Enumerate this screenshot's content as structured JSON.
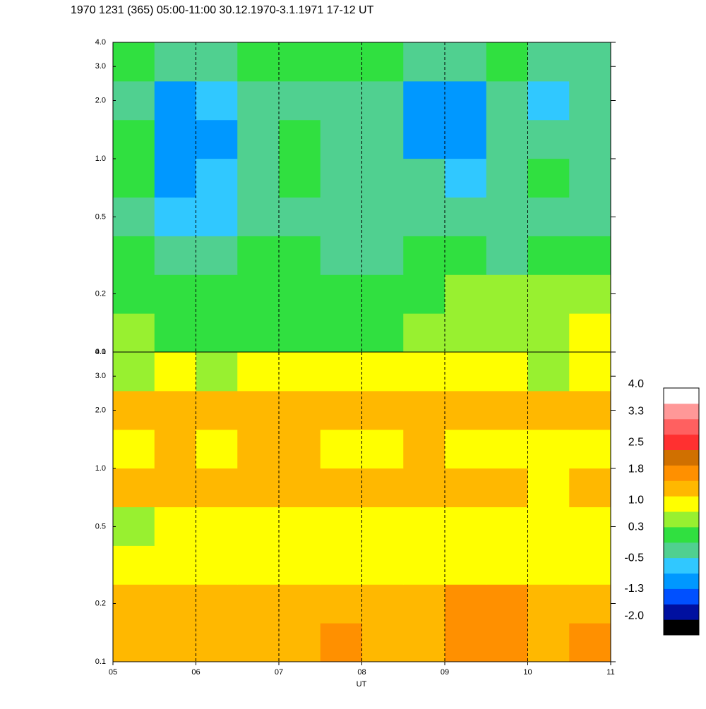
{
  "chart_data": [
    {
      "type": "heatmap",
      "title": "1970 1231 (365) 05:00-11:00 30.12.1970-3.1.1971  17-12 UT",
      "xlim": [
        5,
        11
      ],
      "ylim": [
        0.1,
        4
      ],
      "log_y": true,
      "yticks": [
        0.1,
        0.2,
        0.5,
        {
          "value": 1,
          "label": "1.0"
        },
        {
          "value": 2,
          "label": "2.0"
        },
        {
          "value": 3,
          "label": "3.0"
        },
        {
          "value": 4,
          "label": "4.0"
        }
      ],
      "grid_x": [
        6,
        7,
        8,
        9,
        10
      ],
      "values": [
        [
          0.5,
          0.4,
          0.4,
          0.4,
          0.4,
          0.4,
          0.4,
          0.5,
          0.5,
          0.6,
          0.7,
          0.8
        ],
        [
          0.4,
          0.3,
          0.4,
          0.4,
          0.4,
          0.3,
          0.4,
          0.4,
          0.5,
          0.5,
          0.6,
          0.7
        ],
        [
          0.1,
          -0.3,
          -0.2,
          0.1,
          0.2,
          -0.1,
          0,
          0.1,
          0.1,
          0,
          0.2,
          0.3
        ],
        [
          0,
          -0.7,
          -0.5,
          -0.1,
          0,
          -0.3,
          -0.1,
          -0.1,
          -0.2,
          -0.3,
          -0.1,
          0
        ],
        [
          0.2,
          -0.9,
          -0.5,
          0,
          0.2,
          -0.2,
          0,
          -0.2,
          -0.5,
          -0.2,
          0.1,
          0
        ],
        [
          0.1,
          -0.9,
          -0.8,
          -0.2,
          0.1,
          -0.3,
          -0.2,
          -0.9,
          -0.9,
          -0.3,
          -0.2,
          -0.4
        ],
        [
          0,
          -0.8,
          -0.6,
          -0.2,
          0,
          -0.2,
          0,
          -0.8,
          -0.9,
          -0.2,
          -0.5,
          -0.4
        ],
        [
          0.2,
          0,
          -0.1,
          0.1,
          0.2,
          0.1,
          0.2,
          -0.1,
          0,
          0.1,
          -0.2,
          0
        ]
      ]
    },
    {
      "type": "heatmap",
      "xlabel": "UT",
      "xlim": [
        5,
        11
      ],
      "ylim": [
        0.1,
        4
      ],
      "log_y": true,
      "xticks": [
        {
          "value": 5,
          "label": "05"
        },
        {
          "value": 6,
          "label": "06"
        },
        {
          "value": 7,
          "label": "07"
        },
        {
          "value": 8,
          "label": "08"
        },
        {
          "value": 9,
          "label": "09"
        },
        {
          "value": 10,
          "label": "10"
        },
        {
          "value": 11,
          "label": "11"
        }
      ],
      "yticks": [
        0.1,
        0.2,
        0.5,
        {
          "value": 1,
          "label": "1.0"
        },
        {
          "value": 2,
          "label": "2.0"
        },
        {
          "value": 3,
          "label": "3.0"
        },
        {
          "value": 4,
          "label": "4.0"
        }
      ],
      "grid_x": [
        6,
        7,
        8,
        9,
        10
      ],
      "values": [
        [
          1.5,
          1.4,
          1.4,
          1.5,
          1.5,
          1.6,
          1.5,
          1.5,
          1.7,
          1.8,
          1.5,
          1.6
        ],
        [
          1.4,
          1.4,
          1.3,
          1.5,
          1.4,
          1.5,
          1.4,
          1.4,
          1.6,
          1.7,
          1.5,
          1.5
        ],
        [
          0.9,
          1.0,
          0.9,
          1.0,
          1.0,
          1.1,
          1.0,
          0.9,
          1.0,
          1.1,
          0.9,
          1.0
        ],
        [
          0.7,
          1.2,
          0.8,
          0.9,
          1.0,
          1.2,
          0.9,
          1.1,
          1.2,
          1.0,
          0.8,
          1.0
        ],
        [
          1.3,
          1.4,
          1.3,
          1.4,
          1.5,
          1.4,
          1.3,
          1.4,
          1.3,
          1.3,
          1.2,
          1.3
        ],
        [
          1.2,
          1.3,
          1.2,
          1.3,
          1.3,
          1.2,
          1.2,
          1.3,
          1.2,
          1.2,
          1.1,
          1.2
        ],
        [
          1.3,
          1.3,
          1.3,
          1.3,
          1.3,
          1.4,
          1.3,
          1.3,
          1.3,
          1.3,
          1.3,
          1.3
        ],
        [
          0.7,
          0.8,
          0.7,
          0.8,
          0.8,
          0.9,
          0.8,
          0.8,
          0.8,
          0.8,
          0.7,
          0.8
        ]
      ],
      "colorbar": {
        "clim": [
          -2.4,
          4.0
        ],
        "colors": [
          "#000000",
          "#0010a0",
          "#0050ff",
          "#0098ff",
          "#30c8ff",
          "#50d090",
          "#30e040",
          "#98f030",
          "#ffff00",
          "#ffb800",
          "#ff9000",
          "#d07000",
          "#ff3030",
          "#ff6060",
          "#ff9898",
          "#ffffff"
        ],
        "ticks": [
          {
            "value": 4,
            "label": "4.0"
          },
          3.3,
          2.5,
          1.8,
          {
            "value": 1,
            "label": "1.0"
          },
          0.3,
          -0.5,
          -1.3,
          {
            "value": -2,
            "label": "-2.0"
          }
        ]
      }
    }
  ]
}
